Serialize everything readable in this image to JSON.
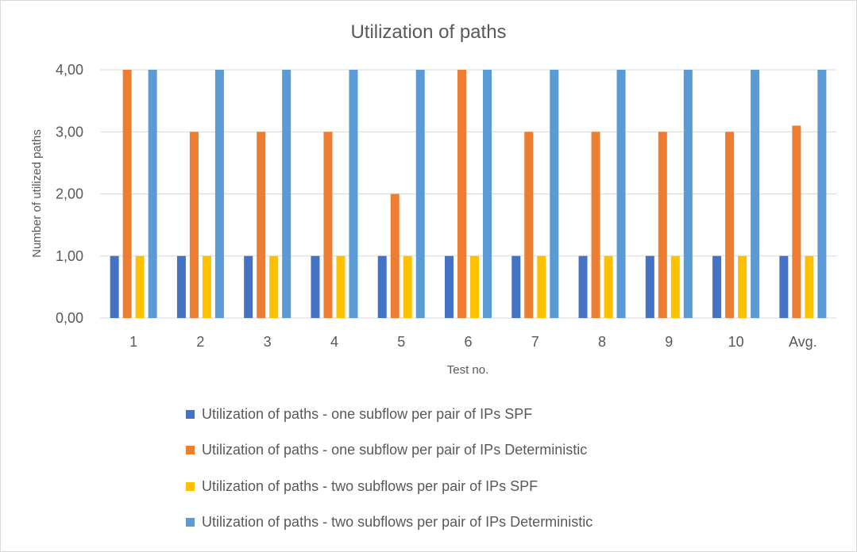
{
  "chart_data": {
    "type": "bar",
    "title": "Utilization of paths",
    "xlabel": "Test no.",
    "ylabel": "Number of utilized paths",
    "categories": [
      "1",
      "2",
      "3",
      "4",
      "5",
      "6",
      "7",
      "8",
      "9",
      "10",
      "Avg."
    ],
    "ylim": [
      0,
      4
    ],
    "yticks": [
      "0,00",
      "1,00",
      "2,00",
      "3,00",
      "4,00"
    ],
    "grid": true,
    "legend_position": "bottom",
    "series": [
      {
        "name": "Utilization of paths - one subflow per pair of IPs SPF",
        "color": "#4472c4",
        "values": [
          1,
          1,
          1,
          1,
          1,
          1,
          1,
          1,
          1,
          1,
          1
        ]
      },
      {
        "name": "Utilization of paths - one subflow per pair of IPs Deterministic",
        "color": "#ed7d31",
        "values": [
          4,
          3,
          3,
          3,
          2,
          4,
          3,
          3,
          3,
          3,
          3.1
        ]
      },
      {
        "name": "Utilization of paths - two subflows per pair of IPs SPF",
        "color": "#ffc000",
        "values": [
          1,
          1,
          1,
          1,
          1,
          1,
          1,
          1,
          1,
          1,
          1
        ]
      },
      {
        "name": "Utilization of paths - two subflows per pair of IPs Deterministic",
        "color": "#5b9bd5",
        "values": [
          4,
          4,
          4,
          4,
          4,
          4,
          4,
          4,
          4,
          4,
          4
        ]
      }
    ]
  }
}
